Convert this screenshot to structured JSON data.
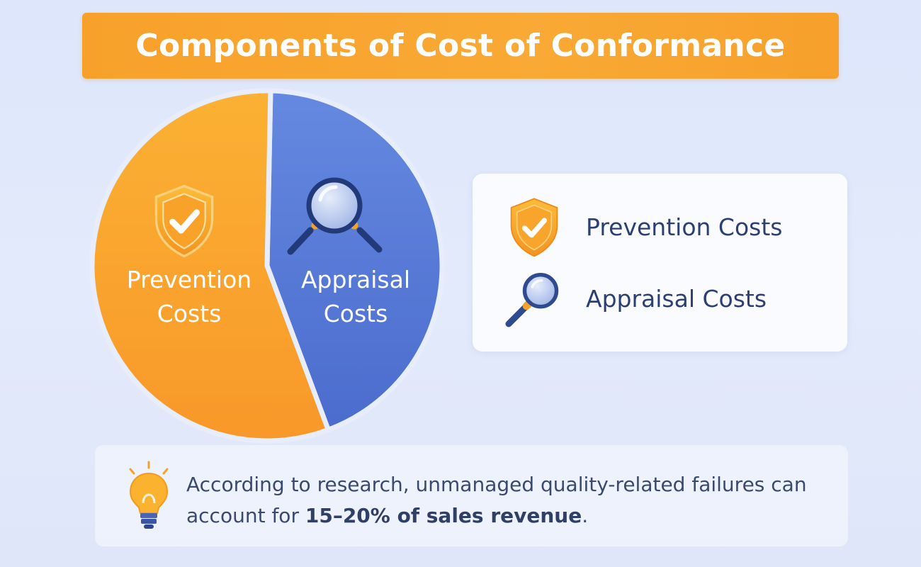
{
  "chart_data": {
    "type": "pie",
    "title": "Components of Cost of Conformance",
    "slices": [
      {
        "name": "Prevention Costs",
        "label_lines": [
          "Prevention",
          "Costs"
        ],
        "value": 56,
        "color": "#f9a12e",
        "icon": "shield-check-icon"
      },
      {
        "name": "Appraisal Costs",
        "label_lines": [
          "Appraisal",
          "Costs"
        ],
        "value": 44,
        "color": "#5478d6",
        "icon": "magnifier-icon"
      }
    ],
    "legend": [
      "Prevention Costs",
      "Appraisal Costs"
    ],
    "legend_placement": "right"
  },
  "header": {
    "title": "Components of Cost of Conformance"
  },
  "legend": {
    "items": [
      {
        "label": "Prevention Costs",
        "icon": "shield-check-icon"
      },
      {
        "label": "Appraisal Costs",
        "icon": "magnifier-icon"
      }
    ]
  },
  "note": {
    "icon": "lightbulb-icon",
    "text_start": "According to research,  unmanaged quality-related failures can account for ",
    "text_strong": "15–20% of sales revenue",
    "text_end": "."
  },
  "colors": {
    "accent_orange": "#f9a12e",
    "accent_blue": "#5478d6",
    "text_navy": "#2b3f73"
  }
}
